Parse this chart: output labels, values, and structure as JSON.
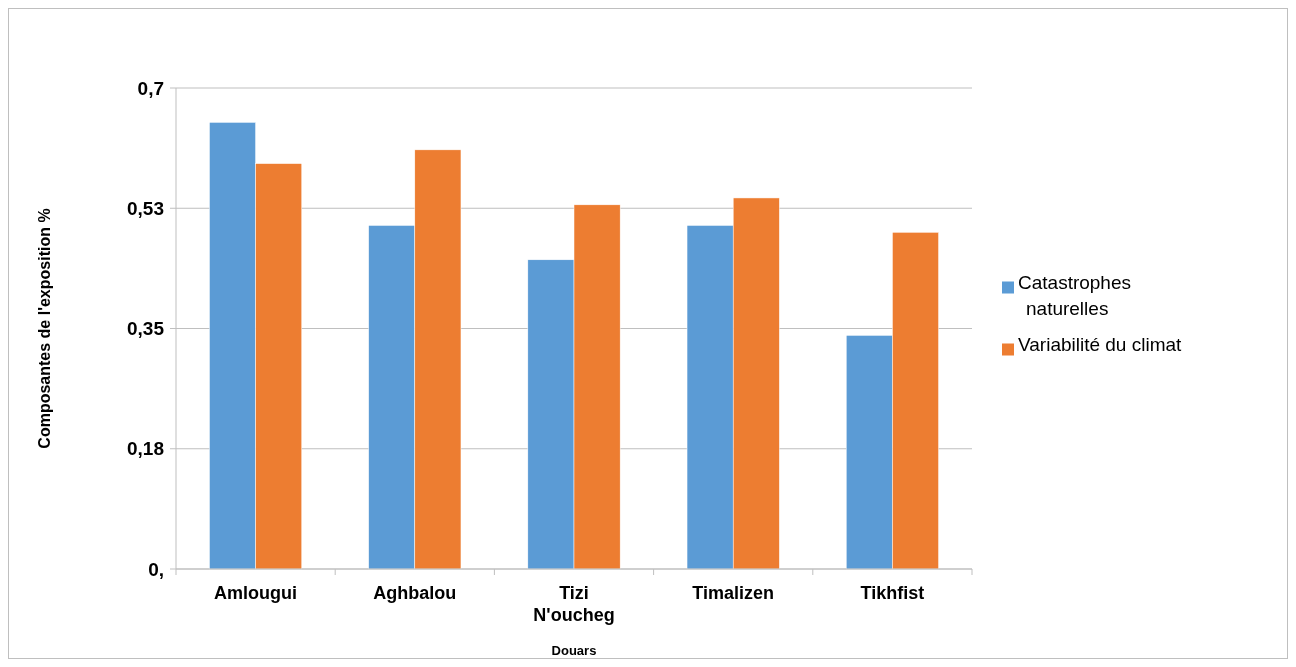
{
  "chart_data": {
    "type": "bar",
    "xlabel": "Douars",
    "ylabel": "Composantes de l'exposition %",
    "categories": [
      "Amlougui",
      "Aghbalou",
      "Tizi N'oucheg",
      "Timalizen",
      "Tikhfist"
    ],
    "series": [
      {
        "name": "Catastrophes naturelles",
        "color": "#5b9bd5",
        "values": [
          0.65,
          0.5,
          0.45,
          0.5,
          0.34
        ]
      },
      {
        "name": "Variabilité du climat",
        "color": "#ed7d31",
        "values": [
          0.59,
          0.61,
          0.53,
          0.54,
          0.49
        ]
      }
    ],
    "ylim": [
      0,
      0.7
    ],
    "yticks": [
      {
        "value": 0,
        "label": "0,"
      },
      {
        "value": 0.175,
        "label": "0,18"
      },
      {
        "value": 0.35,
        "label": "0,35"
      },
      {
        "value": 0.525,
        "label": "0,53"
      },
      {
        "value": 0.7,
        "label": "0,7"
      }
    ],
    "grid": "y",
    "legend": "right"
  }
}
